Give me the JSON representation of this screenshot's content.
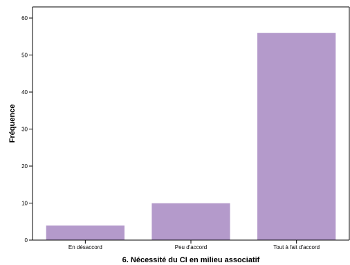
{
  "chart_data": {
    "type": "bar",
    "categories": [
      "En désaccord",
      "Peu d'accord",
      "Tout à fait d'accord"
    ],
    "values": [
      4,
      10,
      56
    ],
    "xlabel": "6. Nécessité du CI en milieu associatif",
    "ylabel": "Fréquence",
    "ylim": [
      0,
      63
    ],
    "yticks": [
      0,
      10,
      20,
      30,
      40,
      50,
      60
    ],
    "grid": false,
    "legend": "none",
    "bar_color": "#b49acb",
    "bar_edge_color": "#ffffff"
  }
}
